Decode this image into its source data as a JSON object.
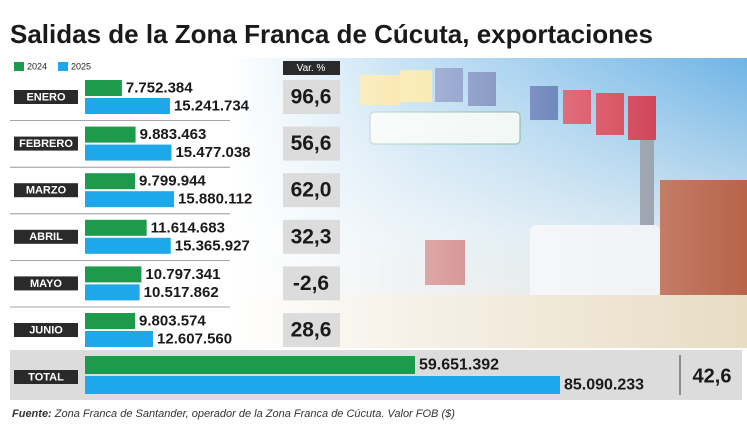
{
  "chart_data": {
    "type": "bar",
    "orientation": "horizontal",
    "title": "Salidas de la Zona Franca de Cúcuta, exportaciones",
    "categories": [
      "ENERO",
      "FEBRERO",
      "MARZO",
      "ABRIL",
      "MAYO",
      "JUNIO"
    ],
    "series": [
      {
        "name": "2024",
        "color": "#1d9a4b",
        "values": [
          7752384,
          9883463,
          9799944,
          11614683,
          10797341,
          9803574
        ],
        "value_labels": [
          "7.752.384",
          "9.883.463",
          "9.799.944",
          "11.614.683",
          "10.797.341",
          "9.803.574"
        ]
      },
      {
        "name": "2025",
        "color": "#1ea7ea",
        "values": [
          15241734,
          15477038,
          15880112,
          15365927,
          10517862,
          12607560
        ],
        "value_labels": [
          "15.241.734",
          "15.477.038",
          "15.880.112",
          "15.365.927",
          "10.517.862",
          "12.607.560"
        ]
      }
    ],
    "xlim": [
      2000000,
      32400000
    ],
    "variation": {
      "header": "Var. %",
      "values": [
        96.6,
        56.6,
        62.0,
        32.3,
        -2.6,
        28.6
      ],
      "value_labels": [
        "96,6",
        "56,6",
        "62,0",
        "32,3",
        "-2,6",
        "28,6"
      ]
    },
    "total": {
      "category": "TOTAL",
      "xlim": [
        1750000,
        106150000
      ],
      "values": [
        59651392,
        85090233
      ],
      "value_labels": [
        "59.651.392",
        "85.090.233"
      ],
      "variation": 42.6,
      "variation_label": "42,6"
    },
    "source_label": "Fuente:",
    "source": "Zona Franca de Santander, operador de la Zona Franca de Cúcuta. Valor FOB ($)"
  }
}
